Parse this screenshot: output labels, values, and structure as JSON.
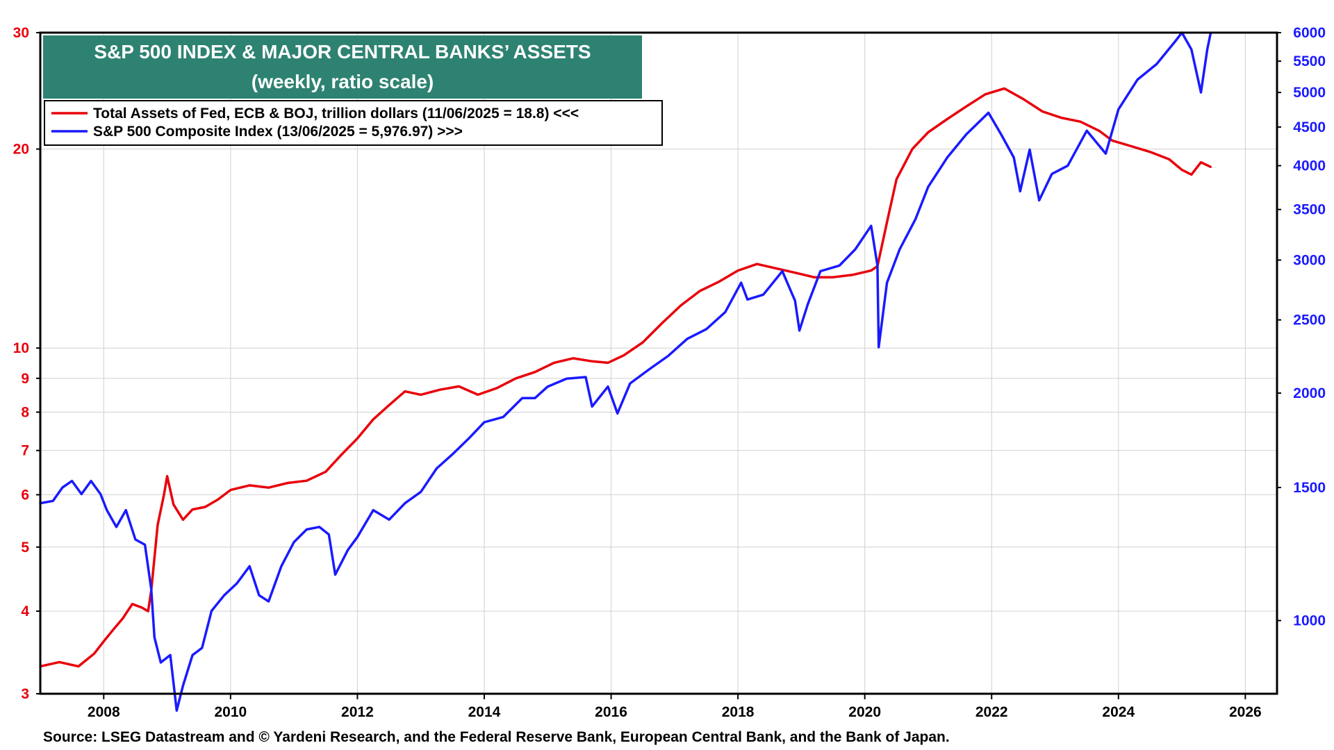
{
  "chart_data": {
    "type": "line",
    "title": "S&P 500 INDEX & MAJOR CENTRAL BANKS’ ASSETS",
    "subtitle": "(weekly, ratio scale)",
    "source": "Source: LSEG Datastream and © Yardeni Research, and the Federal Reserve Bank, European Central Bank, and the Bank of Japan.",
    "x_ticks": [
      "2008",
      "2010",
      "2012",
      "2014",
      "2016",
      "2018",
      "2020",
      "2022",
      "2024",
      "2026"
    ],
    "xlim": [
      2007.0,
      2026.5
    ],
    "grid": true,
    "legend_position": "top-left",
    "left_axis": {
      "scale": "log",
      "ylim": [
        3,
        30
      ],
      "ticks": [
        "3",
        "4",
        "5",
        "6",
        "7",
        "8",
        "9",
        "10",
        "20",
        "30"
      ],
      "color": "#e8000b"
    },
    "right_axis": {
      "scale": "log",
      "ylim": [
        800,
        6000
      ],
      "ticks": [
        "1000",
        "1500",
        "2000",
        "2500",
        "3000",
        "3500",
        "4000",
        "4500",
        "5000",
        "5500",
        "6000"
      ],
      "color": "#1a1aff"
    },
    "series": [
      {
        "name": "Total Assets of Fed, ECB & BOJ, trillion dollars (11/06/2025 = 18.8) <<<",
        "axis": "left",
        "color": "#e8000b",
        "points": [
          [
            2007.0,
            3.3
          ],
          [
            2007.3,
            3.35
          ],
          [
            2007.6,
            3.3
          ],
          [
            2007.85,
            3.45
          ],
          [
            2008.0,
            3.6
          ],
          [
            2008.15,
            3.75
          ],
          [
            2008.3,
            3.9
          ],
          [
            2008.45,
            4.1
          ],
          [
            2008.6,
            4.05
          ],
          [
            2008.7,
            4.0
          ],
          [
            2008.75,
            4.3
          ],
          [
            2008.85,
            5.4
          ],
          [
            2008.95,
            6.0
          ],
          [
            2009.0,
            6.4
          ],
          [
            2009.1,
            5.8
          ],
          [
            2009.25,
            5.5
          ],
          [
            2009.4,
            5.7
          ],
          [
            2009.6,
            5.75
          ],
          [
            2009.8,
            5.9
          ],
          [
            2010.0,
            6.1
          ],
          [
            2010.3,
            6.2
          ],
          [
            2010.6,
            6.15
          ],
          [
            2010.9,
            6.25
          ],
          [
            2011.2,
            6.3
          ],
          [
            2011.5,
            6.5
          ],
          [
            2011.75,
            6.9
          ],
          [
            2012.0,
            7.3
          ],
          [
            2012.25,
            7.8
          ],
          [
            2012.5,
            8.2
          ],
          [
            2012.75,
            8.6
          ],
          [
            2013.0,
            8.5
          ],
          [
            2013.3,
            8.65
          ],
          [
            2013.6,
            8.75
          ],
          [
            2013.9,
            8.5
          ],
          [
            2014.2,
            8.7
          ],
          [
            2014.5,
            9.0
          ],
          [
            2014.8,
            9.2
          ],
          [
            2015.1,
            9.5
          ],
          [
            2015.4,
            9.65
          ],
          [
            2015.7,
            9.55
          ],
          [
            2015.95,
            9.5
          ],
          [
            2016.2,
            9.75
          ],
          [
            2016.5,
            10.2
          ],
          [
            2016.8,
            10.9
          ],
          [
            2017.1,
            11.6
          ],
          [
            2017.4,
            12.2
          ],
          [
            2017.7,
            12.6
          ],
          [
            2018.0,
            13.1
          ],
          [
            2018.3,
            13.4
          ],
          [
            2018.6,
            13.2
          ],
          [
            2018.9,
            13.0
          ],
          [
            2019.2,
            12.8
          ],
          [
            2019.5,
            12.8
          ],
          [
            2019.8,
            12.9
          ],
          [
            2020.1,
            13.1
          ],
          [
            2020.2,
            13.3
          ],
          [
            2020.35,
            15.5
          ],
          [
            2020.5,
            18.0
          ],
          [
            2020.75,
            20.0
          ],
          [
            2021.0,
            21.2
          ],
          [
            2021.3,
            22.2
          ],
          [
            2021.6,
            23.2
          ],
          [
            2021.9,
            24.2
          ],
          [
            2022.2,
            24.7
          ],
          [
            2022.5,
            23.8
          ],
          [
            2022.8,
            22.8
          ],
          [
            2023.1,
            22.3
          ],
          [
            2023.4,
            22.0
          ],
          [
            2023.7,
            21.3
          ],
          [
            2023.9,
            20.6
          ],
          [
            2024.2,
            20.2
          ],
          [
            2024.5,
            19.8
          ],
          [
            2024.8,
            19.3
          ],
          [
            2025.0,
            18.6
          ],
          [
            2025.15,
            18.3
          ],
          [
            2025.3,
            19.1
          ],
          [
            2025.45,
            18.8
          ]
        ]
      },
      {
        "name": "S&P 500 Composite Index (13/06/2025 = 5,976.97) >>>",
        "axis": "right",
        "color": "#1a1aff",
        "points": [
          [
            2007.0,
            1430
          ],
          [
            2007.2,
            1440
          ],
          [
            2007.35,
            1500
          ],
          [
            2007.5,
            1530
          ],
          [
            2007.65,
            1470
          ],
          [
            2007.8,
            1530
          ],
          [
            2007.95,
            1470
          ],
          [
            2008.05,
            1400
          ],
          [
            2008.2,
            1330
          ],
          [
            2008.35,
            1400
          ],
          [
            2008.5,
            1280
          ],
          [
            2008.65,
            1260
          ],
          [
            2008.75,
            1100
          ],
          [
            2008.8,
            950
          ],
          [
            2008.9,
            880
          ],
          [
            2009.05,
            900
          ],
          [
            2009.15,
            760
          ],
          [
            2009.25,
            820
          ],
          [
            2009.4,
            900
          ],
          [
            2009.55,
            920
          ],
          [
            2009.7,
            1030
          ],
          [
            2009.9,
            1080
          ],
          [
            2010.1,
            1120
          ],
          [
            2010.3,
            1180
          ],
          [
            2010.45,
            1080
          ],
          [
            2010.6,
            1060
          ],
          [
            2010.8,
            1180
          ],
          [
            2011.0,
            1270
          ],
          [
            2011.2,
            1320
          ],
          [
            2011.4,
            1330
          ],
          [
            2011.55,
            1300
          ],
          [
            2011.65,
            1150
          ],
          [
            2011.85,
            1240
          ],
          [
            2012.0,
            1290
          ],
          [
            2012.25,
            1400
          ],
          [
            2012.5,
            1360
          ],
          [
            2012.75,
            1430
          ],
          [
            2013.0,
            1480
          ],
          [
            2013.25,
            1590
          ],
          [
            2013.5,
            1660
          ],
          [
            2013.75,
            1740
          ],
          [
            2014.0,
            1830
          ],
          [
            2014.3,
            1860
          ],
          [
            2014.6,
            1970
          ],
          [
            2014.8,
            1970
          ],
          [
            2015.0,
            2040
          ],
          [
            2015.3,
            2090
          ],
          [
            2015.6,
            2100
          ],
          [
            2015.7,
            1920
          ],
          [
            2015.95,
            2040
          ],
          [
            2016.1,
            1880
          ],
          [
            2016.3,
            2060
          ],
          [
            2016.6,
            2150
          ],
          [
            2016.9,
            2240
          ],
          [
            2017.2,
            2360
          ],
          [
            2017.5,
            2430
          ],
          [
            2017.8,
            2560
          ],
          [
            2018.05,
            2800
          ],
          [
            2018.15,
            2660
          ],
          [
            2018.4,
            2700
          ],
          [
            2018.7,
            2900
          ],
          [
            2018.9,
            2650
          ],
          [
            2018.97,
            2420
          ],
          [
            2019.1,
            2620
          ],
          [
            2019.3,
            2900
          ],
          [
            2019.6,
            2950
          ],
          [
            2019.85,
            3100
          ],
          [
            2020.1,
            3330
          ],
          [
            2020.2,
            2950
          ],
          [
            2020.22,
            2300
          ],
          [
            2020.35,
            2800
          ],
          [
            2020.55,
            3100
          ],
          [
            2020.8,
            3400
          ],
          [
            2021.0,
            3750
          ],
          [
            2021.3,
            4100
          ],
          [
            2021.6,
            4400
          ],
          [
            2021.95,
            4700
          ],
          [
            2022.15,
            4400
          ],
          [
            2022.35,
            4100
          ],
          [
            2022.45,
            3700
          ],
          [
            2022.6,
            4200
          ],
          [
            2022.75,
            3600
          ],
          [
            2022.95,
            3900
          ],
          [
            2023.2,
            4000
          ],
          [
            2023.5,
            4450
          ],
          [
            2023.8,
            4150
          ],
          [
            2024.0,
            4750
          ],
          [
            2024.3,
            5200
          ],
          [
            2024.6,
            5450
          ],
          [
            2024.9,
            5850
          ],
          [
            2025.0,
            6000
          ],
          [
            2025.15,
            5700
          ],
          [
            2025.3,
            5000
          ],
          [
            2025.4,
            5700
          ],
          [
            2025.45,
            5977
          ]
        ]
      }
    ]
  }
}
